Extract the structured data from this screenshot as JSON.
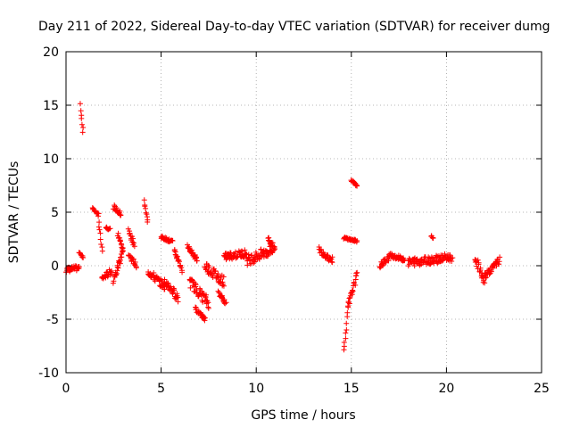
{
  "chart_data": {
    "type": "scatter",
    "title": "Day 211 of 2022, Sidereal Day-to-day VTEC variation (SDTVAR) for receiver dumg",
    "xlabel": "GPS time / hours",
    "ylabel": "SDTVAR / TECUs",
    "xlim": [
      0,
      25
    ],
    "ylim": [
      -10,
      20
    ],
    "xticks": [
      0,
      5,
      10,
      15,
      20,
      25
    ],
    "yticks": [
      -10,
      -5,
      0,
      5,
      10,
      15,
      20
    ],
    "grid": true,
    "marker": "plus",
    "color": "#ff0000",
    "segments": [
      {
        "name": "s1",
        "x": [
          0.0,
          0.7
        ],
        "y": [
          -0.4,
          -0.2
        ],
        "amp": 0.5
      },
      {
        "name": "s2",
        "x": [
          0.75,
          0.9
        ],
        "y": [
          15.0,
          12.5
        ],
        "amp": 0.3
      },
      {
        "name": "s3",
        "x": [
          0.7,
          0.9
        ],
        "y": [
          1.2,
          0.8
        ],
        "amp": 0.2
      },
      {
        "name": "s4",
        "x": [
          1.4,
          1.7
        ],
        "y": [
          5.4,
          4.8
        ],
        "amp": 0.2
      },
      {
        "name": "s5",
        "x": [
          1.7,
          1.9
        ],
        "y": [
          4.5,
          1.3
        ],
        "amp": 0.3
      },
      {
        "name": "s6",
        "x": [
          1.9,
          2.4
        ],
        "y": [
          -1.2,
          -0.5
        ],
        "amp": 0.6
      },
      {
        "name": "s7",
        "x": [
          2.1,
          2.3
        ],
        "y": [
          3.6,
          3.4
        ],
        "amp": 0.2
      },
      {
        "name": "s8",
        "x": [
          2.5,
          2.9
        ],
        "y": [
          5.5,
          4.8
        ],
        "amp": 0.4
      },
      {
        "name": "s9",
        "x": [
          2.5,
          3.0
        ],
        "y": [
          -1.5,
          1.5
        ],
        "amp": 0.8
      },
      {
        "name": "s10",
        "x": [
          2.7,
          3.0
        ],
        "y": [
          3.0,
          1.5
        ],
        "amp": 0.5
      },
      {
        "name": "s11",
        "x": [
          3.3,
          3.6
        ],
        "y": [
          3.2,
          2.0
        ],
        "amp": 0.5
      },
      {
        "name": "s12",
        "x": [
          3.3,
          3.7
        ],
        "y": [
          1.0,
          0.0
        ],
        "amp": 0.5
      },
      {
        "name": "s13",
        "x": [
          4.1,
          4.3
        ],
        "y": [
          6.0,
          4.0
        ],
        "amp": 0.3
      },
      {
        "name": "s14",
        "x": [
          4.3,
          5.2
        ],
        "y": [
          -0.5,
          -2.0
        ],
        "amp": 0.7
      },
      {
        "name": "s15",
        "x": [
          5.0,
          5.6
        ],
        "y": [
          2.7,
          2.2
        ],
        "amp": 0.3
      },
      {
        "name": "s16",
        "x": [
          5.2,
          5.9
        ],
        "y": [
          -1.5,
          -3.0
        ],
        "amp": 0.8
      },
      {
        "name": "s17",
        "x": [
          5.7,
          6.1
        ],
        "y": [
          1.5,
          -0.5
        ],
        "amp": 0.4
      },
      {
        "name": "s18",
        "x": [
          6.4,
          6.9
        ],
        "y": [
          1.8,
          0.5
        ],
        "amp": 0.4
      },
      {
        "name": "s19",
        "x": [
          6.5,
          7.5
        ],
        "y": [
          -1.5,
          -3.5
        ],
        "amp": 1.0
      },
      {
        "name": "s20",
        "x": [
          6.8,
          7.3
        ],
        "y": [
          -4.0,
          -5.0
        ],
        "amp": 0.4
      },
      {
        "name": "s21",
        "x": [
          7.3,
          8.3
        ],
        "y": [
          0.0,
          -1.5
        ],
        "amp": 1.0
      },
      {
        "name": "s22",
        "x": [
          8.0,
          8.4
        ],
        "y": [
          -2.5,
          -3.5
        ],
        "amp": 0.4
      },
      {
        "name": "s23",
        "x": [
          8.3,
          9.5
        ],
        "y": [
          0.8,
          1.2
        ],
        "amp": 0.7
      },
      {
        "name": "s24",
        "x": [
          9.5,
          10.9
        ],
        "y": [
          0.5,
          1.5
        ],
        "amp": 1.0
      },
      {
        "name": "s25",
        "x": [
          10.6,
          11.0
        ],
        "y": [
          2.6,
          1.5
        ],
        "amp": 0.5
      },
      {
        "name": "s26",
        "x": [
          13.3,
          14.0
        ],
        "y": [
          1.5,
          0.5
        ],
        "amp": 0.6
      },
      {
        "name": "s27",
        "x": [
          14.6,
          15.3
        ],
        "y": [
          2.6,
          2.3
        ],
        "amp": 0.2
      },
      {
        "name": "s28",
        "x": [
          15.0,
          15.3
        ],
        "y": [
          8.0,
          7.5
        ],
        "amp": 0.2
      },
      {
        "name": "s29",
        "x": [
          14.6,
          14.8
        ],
        "y": [
          -8.0,
          -4.5
        ],
        "amp": 0.4
      },
      {
        "name": "s30",
        "x": [
          14.8,
          15.3
        ],
        "y": [
          -4.0,
          -0.8
        ],
        "amp": 0.6
      },
      {
        "name": "s31",
        "x": [
          16.5,
          17.0
        ],
        "y": [
          0.0,
          0.8
        ],
        "amp": 0.5
      },
      {
        "name": "s32",
        "x": [
          17.0,
          17.8
        ],
        "y": [
          1.0,
          0.6
        ],
        "amp": 0.4
      },
      {
        "name": "s33",
        "x": [
          18.0,
          20.3
        ],
        "y": [
          0.3,
          0.8
        ],
        "amp": 0.8
      },
      {
        "name": "s34",
        "x": [
          19.2,
          19.3
        ],
        "y": [
          2.7,
          2.5
        ],
        "amp": 0.2
      },
      {
        "name": "s35",
        "x": [
          21.5,
          22.0
        ],
        "y": [
          0.8,
          -1.5
        ],
        "amp": 0.7
      },
      {
        "name": "s36",
        "x": [
          22.0,
          22.8
        ],
        "y": [
          -1.0,
          0.5
        ],
        "amp": 0.6
      }
    ]
  }
}
